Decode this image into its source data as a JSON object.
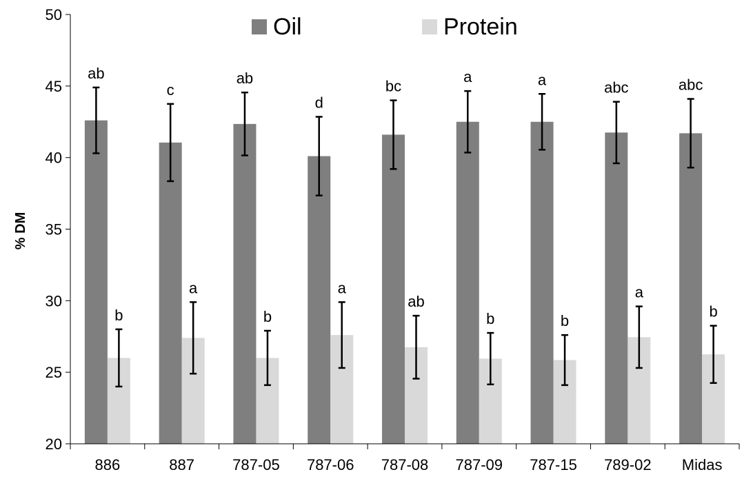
{
  "chart_data": {
    "type": "bar",
    "title": "",
    "xlabel": "",
    "ylabel": "% DM",
    "ylim": [
      20,
      50
    ],
    "yticks": [
      20,
      25,
      30,
      35,
      40,
      45,
      50
    ],
    "grid": false,
    "legend_position": "top-center",
    "categories": [
      "886",
      "887",
      "787-05",
      "787-06",
      "787-08",
      "787-09",
      "787-15",
      "789-02",
      "Midas"
    ],
    "series": [
      {
        "name": "Oil",
        "color": "#7f7f7f",
        "values": [
          42.6,
          41.05,
          42.35,
          40.1,
          41.6,
          42.5,
          42.5,
          41.75,
          41.7
        ],
        "error": [
          2.3,
          2.7,
          2.2,
          2.75,
          2.4,
          2.15,
          1.95,
          2.15,
          2.4
        ],
        "labels": [
          "ab",
          "c",
          "ab",
          "d",
          "bc",
          "a",
          "a",
          "abc",
          "abc"
        ]
      },
      {
        "name": "Protein",
        "color": "#d9d9d9",
        "values": [
          26.0,
          27.4,
          26.0,
          27.6,
          26.75,
          25.95,
          25.85,
          27.45,
          26.25
        ],
        "error": [
          2.0,
          2.5,
          1.9,
          2.3,
          2.2,
          1.8,
          1.75,
          2.15,
          2.0
        ],
        "labels": [
          "b",
          "a",
          "b",
          "a",
          "ab",
          "b",
          "b",
          "a",
          "b"
        ]
      }
    ]
  }
}
